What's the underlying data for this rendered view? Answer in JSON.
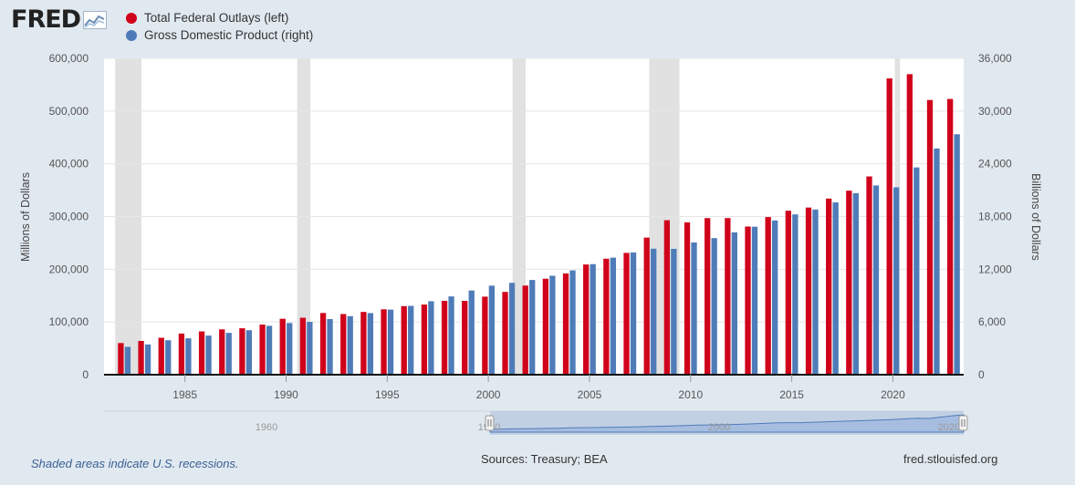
{
  "logo": {
    "text": "FRED"
  },
  "legend": [
    {
      "label": "Total Federal Outlays (left)",
      "color": "#d0021b"
    },
    {
      "label": "Gross Domestic Product (right)",
      "color": "#4f7cb8"
    }
  ],
  "footer": {
    "note": "Shaded areas indicate U.S. recessions.",
    "sources": "Sources: Treasury; BEA",
    "url": "fred.stlouisfed.org"
  },
  "navigator": {
    "labels": [
      "1960",
      "1980",
      "2000",
      "2020"
    ]
  },
  "chart_data": {
    "type": "bar",
    "title": "",
    "categories": [
      1982,
      1983,
      1984,
      1985,
      1986,
      1987,
      1988,
      1989,
      1990,
      1991,
      1992,
      1993,
      1994,
      1995,
      1996,
      1997,
      1998,
      1999,
      2000,
      2001,
      2002,
      2003,
      2004,
      2005,
      2006,
      2007,
      2008,
      2009,
      2010,
      2011,
      2012,
      2013,
      2014,
      2015,
      2016,
      2017,
      2018,
      2019,
      2020,
      2021,
      2022,
      2023
    ],
    "series": [
      {
        "name": "Total Federal Outlays (left)",
        "axis": "left",
        "color": "#d0021b",
        "values": [
          60000,
          64000,
          70000,
          78000,
          82000,
          86000,
          88000,
          95000,
          106000,
          108000,
          117000,
          115000,
          119000,
          124000,
          130000,
          133000,
          140000,
          140000,
          148000,
          157000,
          169000,
          182000,
          192000,
          209000,
          220000,
          231000,
          260000,
          293000,
          289000,
          297000,
          297000,
          281000,
          299000,
          311000,
          317000,
          334000,
          349000,
          376000,
          562000,
          570000,
          521000,
          523000
        ]
      },
      {
        "name": "Gross Domestic Product (right)",
        "axis": "right",
        "color": "#4f7cb8",
        "values": [
          3170,
          3440,
          3920,
          4140,
          4450,
          4760,
          5060,
          5560,
          5880,
          6010,
          6330,
          6660,
          7010,
          7410,
          7830,
          8360,
          8910,
          9580,
          10130,
          10450,
          10780,
          11260,
          11870,
          12580,
          13320,
          13910,
          14340,
          14320,
          15050,
          15540,
          16200,
          16840,
          17550,
          18240,
          18800,
          19610,
          20660,
          21540,
          21320,
          23590,
          25740,
          27360
        ]
      }
    ],
    "recessions": [
      [
        1981.55,
        1982.85
      ],
      [
        1990.55,
        1991.2
      ],
      [
        2001.2,
        2001.85
      ],
      [
        2007.95,
        2009.45
      ],
      [
        2020.1,
        2020.35
      ]
    ],
    "x_ticks": [
      "1985",
      "1990",
      "1995",
      "2000",
      "2005",
      "2010",
      "2015",
      "2020"
    ],
    "x_tick_years": [
      1985,
      1990,
      1995,
      2000,
      2005,
      2010,
      2015,
      2020
    ],
    "xlim": [
      1981,
      2023.5
    ],
    "ylabel_left": "Millions of Dollars",
    "ylabel_right": "Billions of Dollars",
    "ylim_left": [
      0,
      600000
    ],
    "ylim_right": [
      0,
      36000
    ],
    "y_ticks_left": [
      "0",
      "100,000",
      "200,000",
      "300,000",
      "400,000",
      "500,000",
      "600,000"
    ],
    "y_ticks_right": [
      "0",
      "6,000",
      "12,000",
      "18,000",
      "24,000",
      "30,000",
      "36,000"
    ],
    "grid": true
  }
}
